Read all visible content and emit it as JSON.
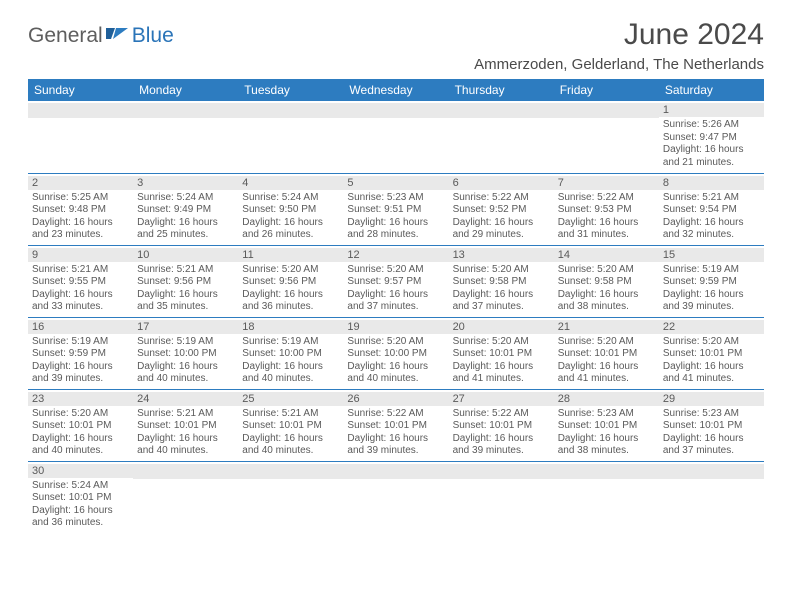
{
  "logo": {
    "general": "General",
    "blue": "Blue"
  },
  "title": "June 2024",
  "location": "Ammerzoden, Gelderland, The Netherlands",
  "colors": {
    "header_bg": "#2d7cc0",
    "header_text": "#ffffff",
    "daybar_bg": "#e9e9e9",
    "text": "#5a5a5a",
    "title_text": "#4a4a4a",
    "row_border": "#2d7cc0"
  },
  "columns": [
    "Sunday",
    "Monday",
    "Tuesday",
    "Wednesday",
    "Thursday",
    "Friday",
    "Saturday"
  ],
  "weeks": [
    [
      null,
      null,
      null,
      null,
      null,
      null,
      {
        "n": "1",
        "sr": "Sunrise: 5:26 AM",
        "ss": "Sunset: 9:47 PM",
        "d1": "Daylight: 16 hours",
        "d2": "and 21 minutes."
      }
    ],
    [
      {
        "n": "2",
        "sr": "Sunrise: 5:25 AM",
        "ss": "Sunset: 9:48 PM",
        "d1": "Daylight: 16 hours",
        "d2": "and 23 minutes."
      },
      {
        "n": "3",
        "sr": "Sunrise: 5:24 AM",
        "ss": "Sunset: 9:49 PM",
        "d1": "Daylight: 16 hours",
        "d2": "and 25 minutes."
      },
      {
        "n": "4",
        "sr": "Sunrise: 5:24 AM",
        "ss": "Sunset: 9:50 PM",
        "d1": "Daylight: 16 hours",
        "d2": "and 26 minutes."
      },
      {
        "n": "5",
        "sr": "Sunrise: 5:23 AM",
        "ss": "Sunset: 9:51 PM",
        "d1": "Daylight: 16 hours",
        "d2": "and 28 minutes."
      },
      {
        "n": "6",
        "sr": "Sunrise: 5:22 AM",
        "ss": "Sunset: 9:52 PM",
        "d1": "Daylight: 16 hours",
        "d2": "and 29 minutes."
      },
      {
        "n": "7",
        "sr": "Sunrise: 5:22 AM",
        "ss": "Sunset: 9:53 PM",
        "d1": "Daylight: 16 hours",
        "d2": "and 31 minutes."
      },
      {
        "n": "8",
        "sr": "Sunrise: 5:21 AM",
        "ss": "Sunset: 9:54 PM",
        "d1": "Daylight: 16 hours",
        "d2": "and 32 minutes."
      }
    ],
    [
      {
        "n": "9",
        "sr": "Sunrise: 5:21 AM",
        "ss": "Sunset: 9:55 PM",
        "d1": "Daylight: 16 hours",
        "d2": "and 33 minutes."
      },
      {
        "n": "10",
        "sr": "Sunrise: 5:21 AM",
        "ss": "Sunset: 9:56 PM",
        "d1": "Daylight: 16 hours",
        "d2": "and 35 minutes."
      },
      {
        "n": "11",
        "sr": "Sunrise: 5:20 AM",
        "ss": "Sunset: 9:56 PM",
        "d1": "Daylight: 16 hours",
        "d2": "and 36 minutes."
      },
      {
        "n": "12",
        "sr": "Sunrise: 5:20 AM",
        "ss": "Sunset: 9:57 PM",
        "d1": "Daylight: 16 hours",
        "d2": "and 37 minutes."
      },
      {
        "n": "13",
        "sr": "Sunrise: 5:20 AM",
        "ss": "Sunset: 9:58 PM",
        "d1": "Daylight: 16 hours",
        "d2": "and 37 minutes."
      },
      {
        "n": "14",
        "sr": "Sunrise: 5:20 AM",
        "ss": "Sunset: 9:58 PM",
        "d1": "Daylight: 16 hours",
        "d2": "and 38 minutes."
      },
      {
        "n": "15",
        "sr": "Sunrise: 5:19 AM",
        "ss": "Sunset: 9:59 PM",
        "d1": "Daylight: 16 hours",
        "d2": "and 39 minutes."
      }
    ],
    [
      {
        "n": "16",
        "sr": "Sunrise: 5:19 AM",
        "ss": "Sunset: 9:59 PM",
        "d1": "Daylight: 16 hours",
        "d2": "and 39 minutes."
      },
      {
        "n": "17",
        "sr": "Sunrise: 5:19 AM",
        "ss": "Sunset: 10:00 PM",
        "d1": "Daylight: 16 hours",
        "d2": "and 40 minutes."
      },
      {
        "n": "18",
        "sr": "Sunrise: 5:19 AM",
        "ss": "Sunset: 10:00 PM",
        "d1": "Daylight: 16 hours",
        "d2": "and 40 minutes."
      },
      {
        "n": "19",
        "sr": "Sunrise: 5:20 AM",
        "ss": "Sunset: 10:00 PM",
        "d1": "Daylight: 16 hours",
        "d2": "and 40 minutes."
      },
      {
        "n": "20",
        "sr": "Sunrise: 5:20 AM",
        "ss": "Sunset: 10:01 PM",
        "d1": "Daylight: 16 hours",
        "d2": "and 41 minutes."
      },
      {
        "n": "21",
        "sr": "Sunrise: 5:20 AM",
        "ss": "Sunset: 10:01 PM",
        "d1": "Daylight: 16 hours",
        "d2": "and 41 minutes."
      },
      {
        "n": "22",
        "sr": "Sunrise: 5:20 AM",
        "ss": "Sunset: 10:01 PM",
        "d1": "Daylight: 16 hours",
        "d2": "and 41 minutes."
      }
    ],
    [
      {
        "n": "23",
        "sr": "Sunrise: 5:20 AM",
        "ss": "Sunset: 10:01 PM",
        "d1": "Daylight: 16 hours",
        "d2": "and 40 minutes."
      },
      {
        "n": "24",
        "sr": "Sunrise: 5:21 AM",
        "ss": "Sunset: 10:01 PM",
        "d1": "Daylight: 16 hours",
        "d2": "and 40 minutes."
      },
      {
        "n": "25",
        "sr": "Sunrise: 5:21 AM",
        "ss": "Sunset: 10:01 PM",
        "d1": "Daylight: 16 hours",
        "d2": "and 40 minutes."
      },
      {
        "n": "26",
        "sr": "Sunrise: 5:22 AM",
        "ss": "Sunset: 10:01 PM",
        "d1": "Daylight: 16 hours",
        "d2": "and 39 minutes."
      },
      {
        "n": "27",
        "sr": "Sunrise: 5:22 AM",
        "ss": "Sunset: 10:01 PM",
        "d1": "Daylight: 16 hours",
        "d2": "and 39 minutes."
      },
      {
        "n": "28",
        "sr": "Sunrise: 5:23 AM",
        "ss": "Sunset: 10:01 PM",
        "d1": "Daylight: 16 hours",
        "d2": "and 38 minutes."
      },
      {
        "n": "29",
        "sr": "Sunrise: 5:23 AM",
        "ss": "Sunset: 10:01 PM",
        "d1": "Daylight: 16 hours",
        "d2": "and 37 minutes."
      }
    ],
    [
      {
        "n": "30",
        "sr": "Sunrise: 5:24 AM",
        "ss": "Sunset: 10:01 PM",
        "d1": "Daylight: 16 hours",
        "d2": "and 36 minutes."
      },
      null,
      null,
      null,
      null,
      null,
      null
    ]
  ]
}
